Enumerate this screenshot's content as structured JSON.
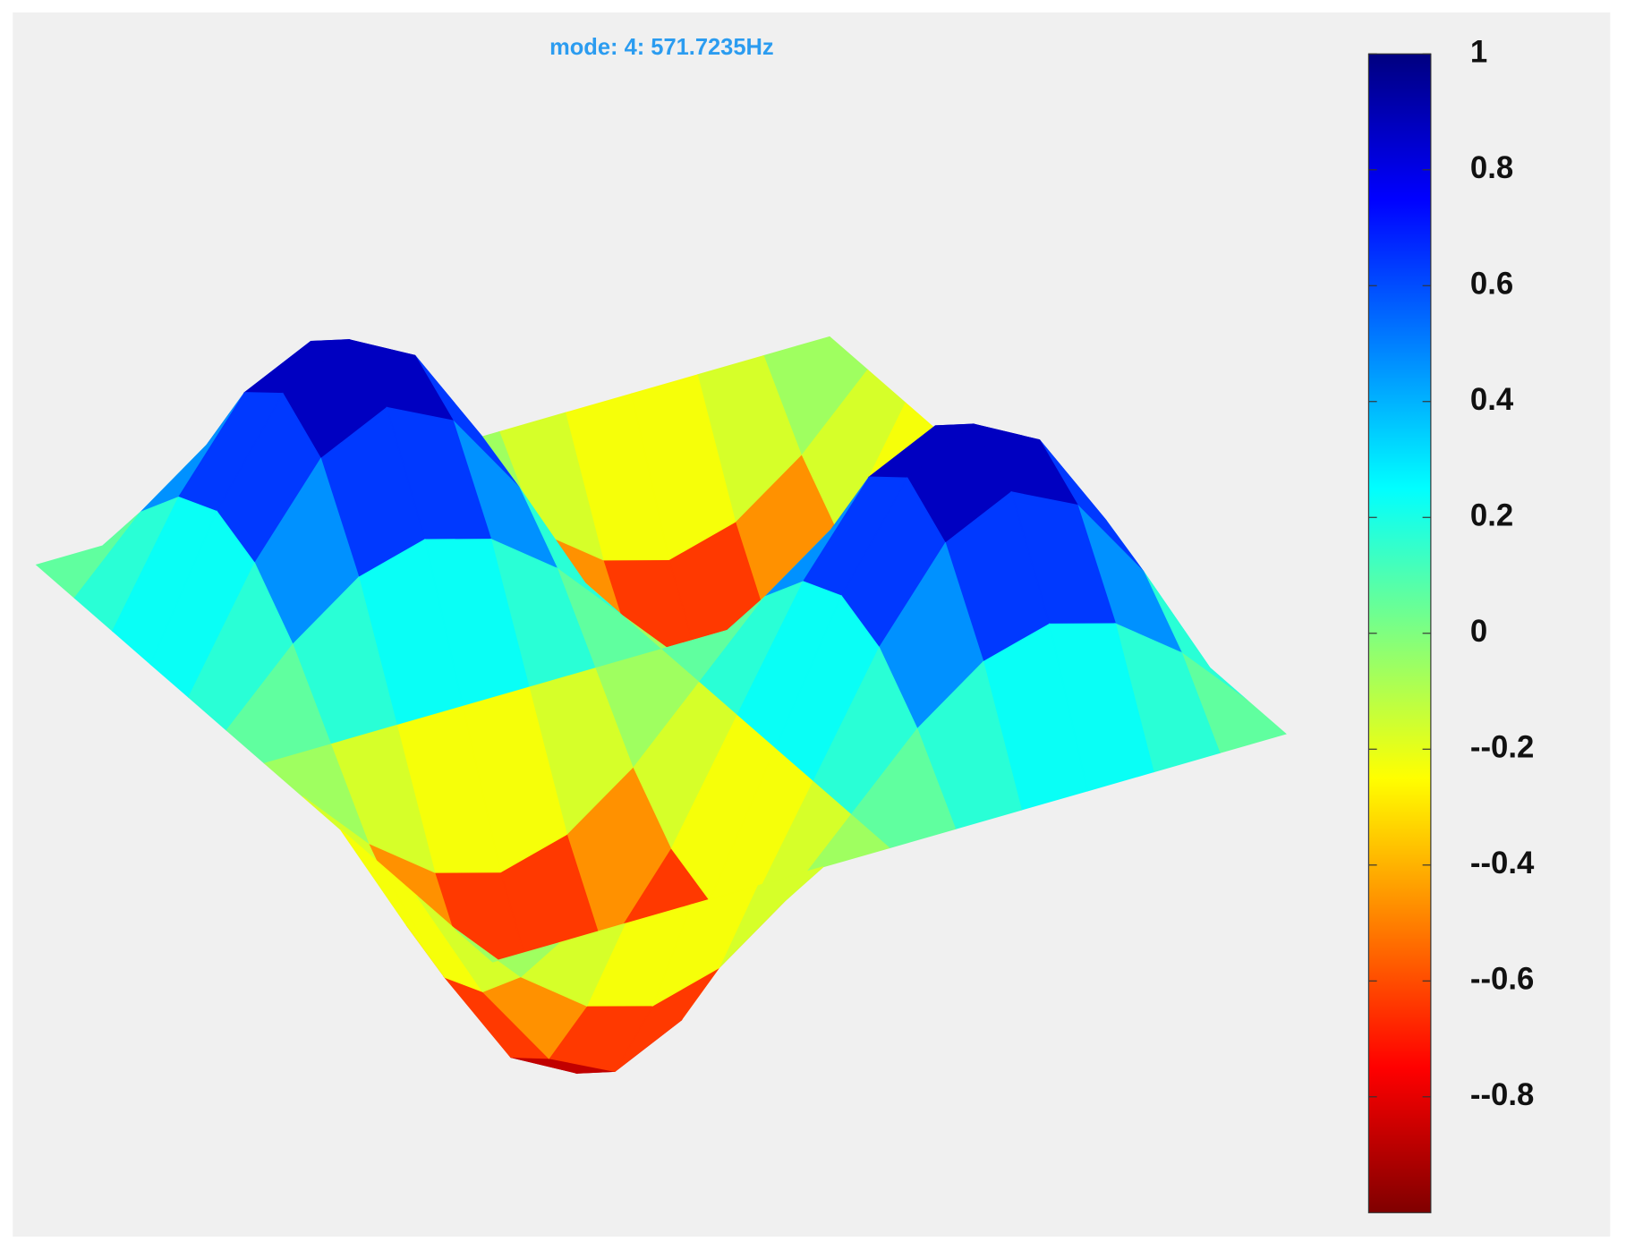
{
  "chart_data": {
    "type": "surface",
    "title": "mode: 4: 571.7235Hz",
    "colormap": "jet",
    "reverse_colormap": true,
    "z": [
      [
        0,
        0,
        0,
        0,
        0,
        0,
        0,
        0,
        0,
        0,
        0,
        0,
        0
      ],
      [
        0,
        0.25,
        0.43,
        0.5,
        0.43,
        0.25,
        0,
        -0.25,
        -0.43,
        -0.5,
        -0.43,
        -0.25,
        0
      ],
      [
        0,
        0.43,
        0.75,
        0.87,
        0.75,
        0.43,
        0,
        -0.43,
        -0.75,
        -0.87,
        -0.75,
        -0.43,
        0
      ],
      [
        0,
        0.5,
        0.87,
        1,
        0.87,
        0.5,
        0,
        -0.5,
        -0.87,
        -1,
        -0.87,
        -0.5,
        0
      ],
      [
        0,
        0.43,
        0.75,
        0.87,
        0.75,
        0.43,
        0,
        -0.43,
        -0.75,
        -0.87,
        -0.75,
        -0.43,
        0
      ],
      [
        0,
        0.25,
        0.43,
        0.5,
        0.43,
        0.25,
        0,
        -0.25,
        -0.43,
        -0.5,
        -0.43,
        -0.25,
        0
      ],
      [
        0,
        0,
        0,
        0,
        0,
        0,
        0,
        0,
        0,
        0,
        0,
        0,
        0
      ],
      [
        0,
        -0.25,
        -0.43,
        -0.5,
        -0.43,
        -0.25,
        0,
        0.25,
        0.43,
        0.5,
        0.43,
        0.25,
        0
      ],
      [
        0,
        -0.43,
        -0.75,
        -0.87,
        -0.75,
        -0.43,
        0,
        0.43,
        0.75,
        0.87,
        0.75,
        0.43,
        0
      ],
      [
        0,
        -0.5,
        -0.87,
        -1,
        -0.87,
        -0.5,
        0,
        0.5,
        0.87,
        1,
        0.87,
        0.5,
        0
      ],
      [
        0,
        -0.43,
        -0.75,
        -0.87,
        -0.75,
        -0.43,
        0,
        0.43,
        0.75,
        0.87,
        0.75,
        0.43,
        0
      ],
      [
        0,
        -0.25,
        -0.43,
        -0.5,
        -0.43,
        -0.25,
        0,
        0.25,
        0.43,
        0.5,
        0.43,
        0.25,
        0
      ],
      [
        0,
        0,
        0,
        0,
        0,
        0,
        0,
        0,
        0,
        0,
        0,
        0,
        0
      ]
    ],
    "clim": [
      -1,
      1
    ],
    "cticks": [
      1,
      0.8,
      0.6,
      0.4,
      0.2,
      0,
      {
        "value": -0.2,
        "label": "--0.2"
      },
      {
        "value": -0.4,
        "label": "--0.4"
      },
      {
        "value": -0.6,
        "label": "--0.6"
      },
      {
        "value": -0.8,
        "label": "--0.8"
      }
    ]
  }
}
